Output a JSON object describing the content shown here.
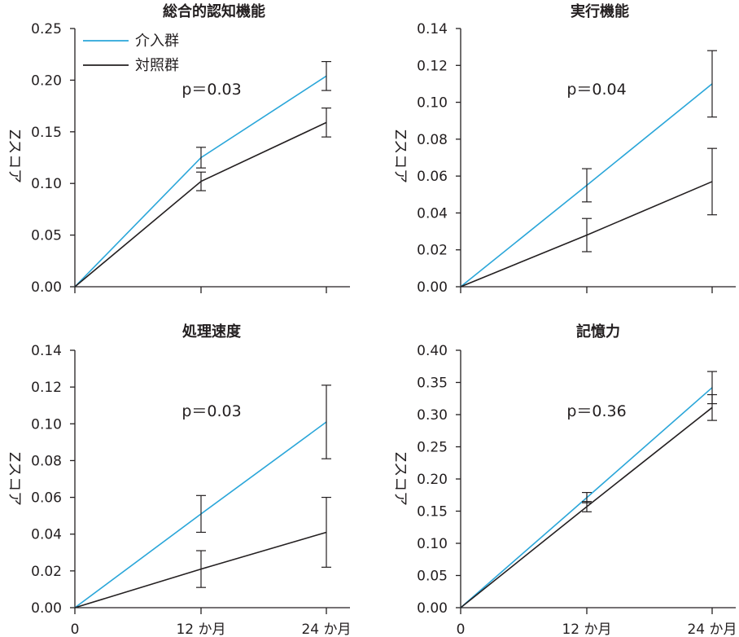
{
  "colors": {
    "intervention": "#2aa6d9",
    "control": "#231f20",
    "axis": "#231f20"
  },
  "legend": {
    "position": "top-left of first panel",
    "items": [
      "介入群",
      "対照群"
    ]
  },
  "chart_data": [
    {
      "type": "line",
      "title": "総合的認知機能",
      "ylabel": "Zスコア",
      "xlabel": "",
      "x_ticks": [
        "0",
        "12 か月",
        "24 か月"
      ],
      "x": [
        0,
        12,
        24
      ],
      "ylim": [
        0,
        0.25
      ],
      "y_ticks": [
        "0.00",
        "0.05",
        "0.10",
        "0.15",
        "0.20",
        "0.25"
      ],
      "y_tick_values": [
        0,
        0.05,
        0.1,
        0.15,
        0.2,
        0.25
      ],
      "annotation": "p＝0.03",
      "series": [
        {
          "name": "介入群",
          "values": [
            0,
            0.125,
            0.204
          ],
          "err": [
            0,
            0.01,
            0.014
          ]
        },
        {
          "name": "対照群",
          "values": [
            0,
            0.102,
            0.159
          ],
          "err": [
            0,
            0.009,
            0.014
          ]
        }
      ]
    },
    {
      "type": "line",
      "title": "実行機能",
      "ylabel": "Zスコア",
      "xlabel": "",
      "x_ticks": [
        "0",
        "12 か月",
        "24 か月"
      ],
      "x": [
        0,
        12,
        24
      ],
      "ylim": [
        0,
        0.14
      ],
      "y_ticks": [
        "0.00",
        "0.02",
        "0.04",
        "0.06",
        "0.08",
        "0.10",
        "0.12",
        "0.14"
      ],
      "y_tick_values": [
        0,
        0.02,
        0.04,
        0.06,
        0.08,
        0.1,
        0.12,
        0.14
      ],
      "annotation": "p＝0.04",
      "series": [
        {
          "name": "介入群",
          "values": [
            0,
            0.055,
            0.11
          ],
          "err": [
            0,
            0.009,
            0.018
          ]
        },
        {
          "name": "対照群",
          "values": [
            0,
            0.028,
            0.057
          ],
          "err": [
            0,
            0.009,
            0.018
          ]
        }
      ]
    },
    {
      "type": "line",
      "title": "処理速度",
      "ylabel": "Zスコア",
      "xlabel": "",
      "x_ticks": [
        "0",
        "12 か月",
        "24 か月"
      ],
      "x": [
        0,
        12,
        24
      ],
      "ylim": [
        0,
        0.14
      ],
      "y_ticks": [
        "0.00",
        "0.02",
        "0.04",
        "0.06",
        "0.08",
        "0.10",
        "0.12",
        "0.14"
      ],
      "y_tick_values": [
        0,
        0.02,
        0.04,
        0.06,
        0.08,
        0.1,
        0.12,
        0.14
      ],
      "annotation": "p＝0.03",
      "series": [
        {
          "name": "介入群",
          "values": [
            0,
            0.051,
            0.101
          ],
          "err": [
            0,
            0.01,
            0.02
          ]
        },
        {
          "name": "対照群",
          "values": [
            0,
            0.021,
            0.041
          ],
          "err": [
            0,
            0.01,
            0.019
          ]
        }
      ]
    },
    {
      "type": "line",
      "title": "記憶力",
      "ylabel": "Zスコア",
      "xlabel": "",
      "x_ticks": [
        "0",
        "12 か月",
        "24 か月"
      ],
      "x": [
        0,
        12,
        24
      ],
      "ylim": [
        0,
        0.4
      ],
      "y_ticks": [
        "0.00",
        "0.05",
        "0.10",
        "0.15",
        "0.20",
        "0.25",
        "0.30",
        "0.35",
        "0.40"
      ],
      "y_tick_values": [
        0,
        0.05,
        0.1,
        0.15,
        0.2,
        0.25,
        0.3,
        0.35,
        0.4
      ],
      "annotation": "p＝0.36",
      "series": [
        {
          "name": "介入群",
          "values": [
            0,
            0.171,
            0.342
          ],
          "err": [
            0,
            0.008,
            0.025
          ]
        },
        {
          "name": "対照群",
          "values": [
            0,
            0.157,
            0.311
          ],
          "err": [
            0,
            0.008,
            0.02
          ]
        }
      ]
    }
  ]
}
